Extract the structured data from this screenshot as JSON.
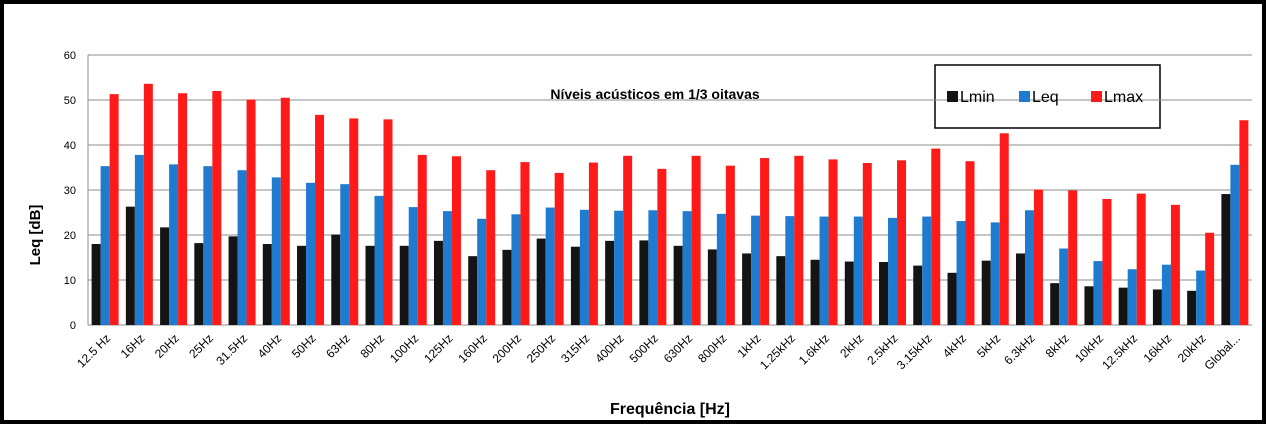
{
  "chart_data": {
    "type": "bar",
    "title": "Níveis acústicos em 1/3 oitavas",
    "x_label": "Frequência [Hz]",
    "y_label": "Leq [dB]",
    "categories": [
      "12.5 Hz",
      "16Hz",
      "20Hz",
      "25Hz",
      "31.5Hz",
      "40Hz",
      "50Hz",
      "63Hz",
      "80Hz",
      "100Hz",
      "125Hz",
      "160Hz",
      "200Hz",
      "250Hz",
      "315Hz",
      "400Hz",
      "500Hz",
      "630Hz",
      "800Hz",
      "1kHz",
      "1.25kHz",
      "1.6kHz",
      "2kHz",
      "2.5kHz",
      "3.15kHz",
      "4kHz",
      "5kHz",
      "6.3kHz",
      "8kHz",
      "10kHz",
      "12.5kHz",
      "16kHz",
      "20kHz",
      "Global..."
    ],
    "series": [
      {
        "name": "Lmin",
        "color": "#141414",
        "values": [
          18,
          26.3,
          21.7,
          18.2,
          19.7,
          18,
          17.6,
          20.1,
          17.6,
          17.6,
          18.7,
          15.3,
          16.7,
          19.2,
          17.4,
          18.7,
          18.8,
          17.6,
          16.8,
          15.9,
          15.3,
          14.5,
          14.1,
          14,
          13.2,
          11.6,
          14.3,
          15.9,
          9.3,
          8.6,
          8.3,
          7.9,
          7.6,
          29.1
        ]
      },
      {
        "name": "Leq",
        "color": "#1f7bcf",
        "values": [
          35.3,
          37.8,
          35.7,
          35.3,
          34.4,
          32.8,
          31.6,
          31.3,
          28.7,
          26.2,
          25.3,
          23.6,
          24.6,
          26.1,
          25.6,
          25.4,
          25.5,
          25.3,
          24.7,
          24.3,
          24.2,
          24.1,
          24.1,
          23.8,
          24.1,
          23.1,
          22.8,
          25.5,
          17,
          14.2,
          12.4,
          13.4,
          12.1,
          35.6
        ]
      },
      {
        "name": "Lmax",
        "color": "#ff1a1a",
        "values": [
          51.3,
          53.6,
          51.5,
          52,
          50.1,
          50.5,
          46.7,
          45.9,
          45.7,
          37.8,
          37.5,
          34.4,
          36.2,
          33.8,
          36.1,
          37.6,
          34.7,
          37.6,
          35.4,
          37.1,
          37.6,
          36.8,
          36,
          36.6,
          39.2,
          36.4,
          42.6,
          30.1,
          29.9,
          28,
          29.2,
          26.7,
          20.5,
          45.5
        ]
      }
    ],
    "ylim": [
      0,
      60
    ],
    "yticks": [
      0,
      10,
      20,
      30,
      40,
      50,
      60
    ],
    "grid": true
  }
}
